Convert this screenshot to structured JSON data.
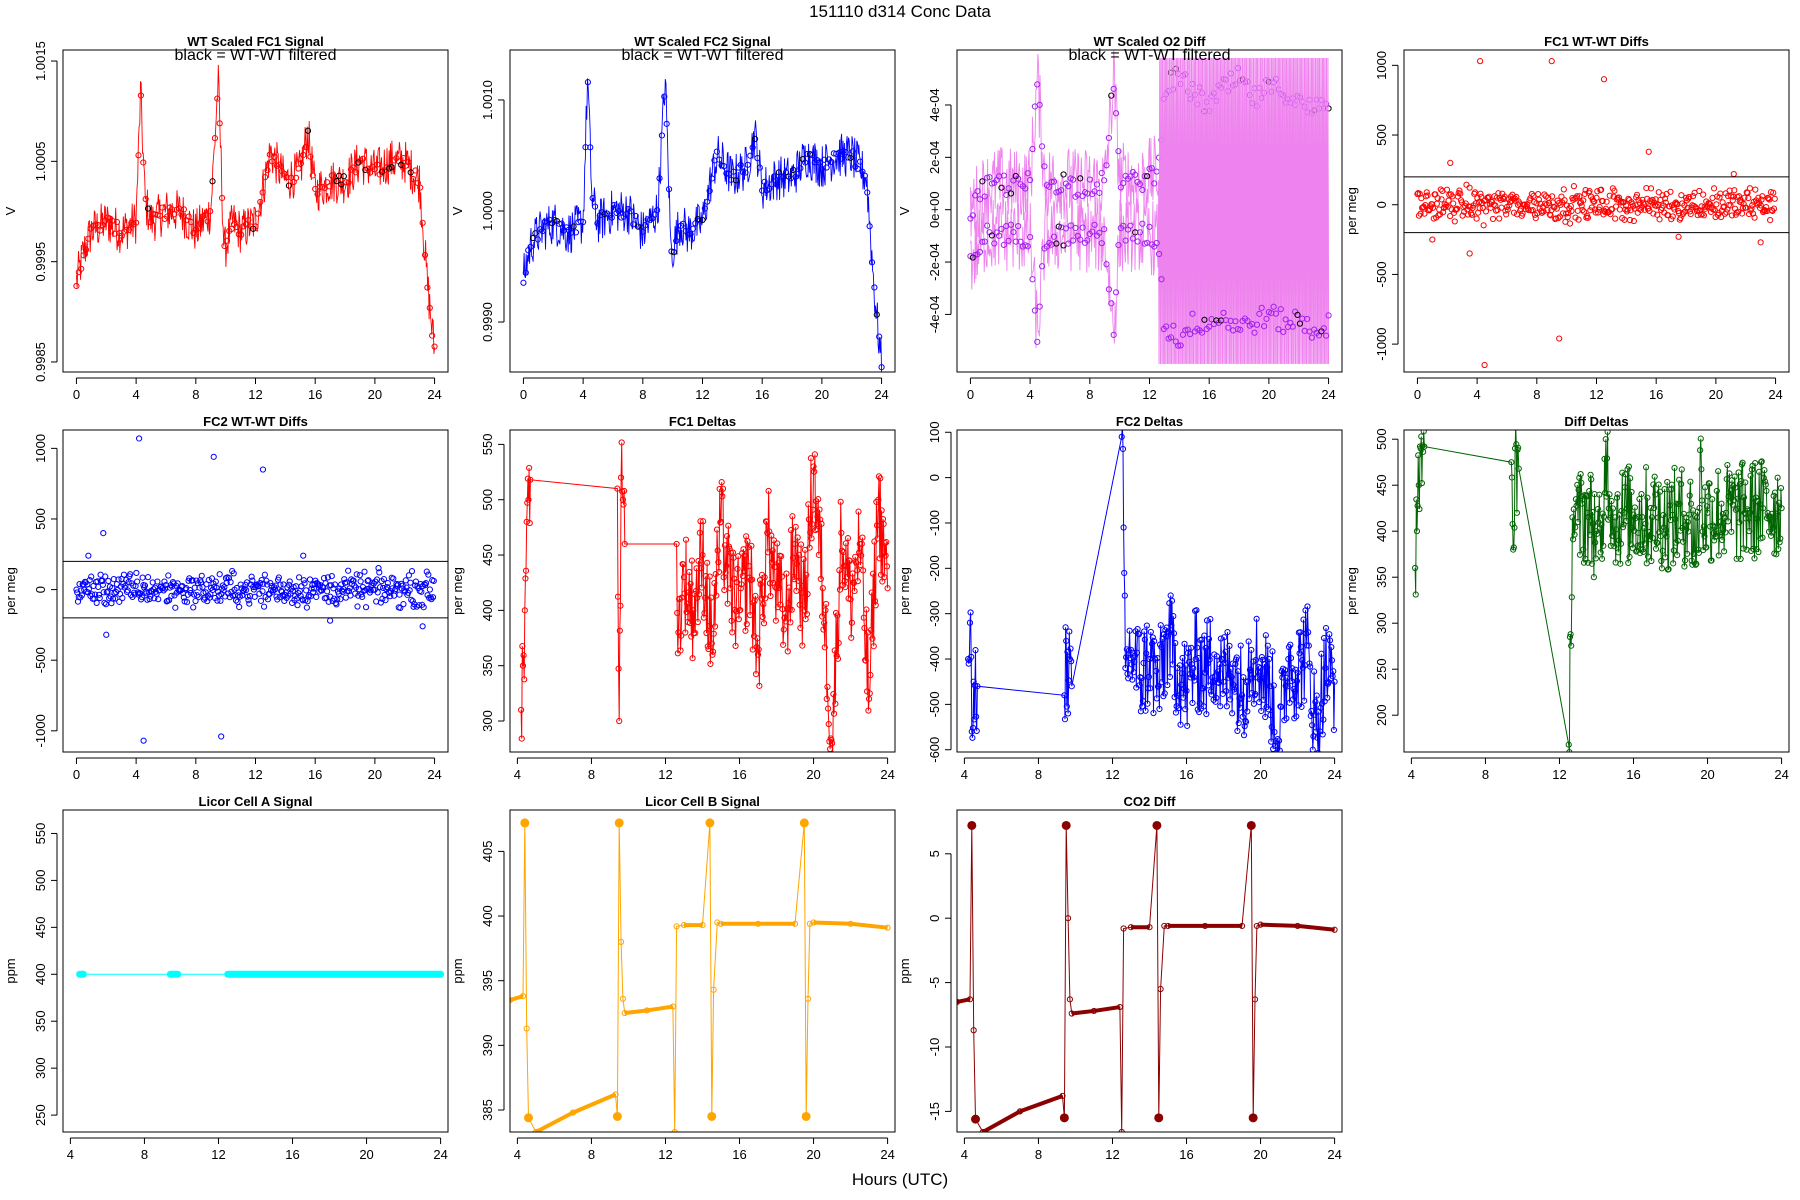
{
  "page": {
    "title": "151110    d314    Conc Data",
    "xlabel": "Hours (UTC)"
  },
  "chart_data": [
    {
      "type": "line",
      "title": "WT Scaled FC1 Signal",
      "annotation": "black = WT-WT filtered",
      "ylabel": "V",
      "color": "#ff0000",
      "xticks": [
        0,
        4,
        8,
        12,
        16,
        20,
        24
      ],
      "xlim": [
        -0.9,
        24.9
      ],
      "ylim": [
        0.9984,
        1.00161
      ],
      "yticks": [
        0.9985,
        0.9995,
        1.0005,
        1.0015
      ],
      "ytick_labels": [
        "0.9985",
        "0.9995",
        "1.0005",
        "1.0015"
      ],
      "overlay_color": "#000000",
      "series": [
        {
          "x": [
            0,
            0.5,
            1,
            2,
            3,
            4,
            4.3,
            4.6,
            5,
            6,
            7,
            8,
            9,
            9.5,
            9.9,
            10.5,
            11,
            12,
            12.6,
            13,
            14,
            15,
            15.5,
            16,
            17,
            18,
            19,
            20,
            21,
            22,
            23,
            23.5,
            24
          ],
          "values": [
            0.9993,
            0.9996,
            0.9998,
            0.9999,
            0.9998,
            0.9999,
            1.0012,
            1.0001,
            0.9999,
            1.0,
            1.0,
            0.9998,
            1.0,
            1.0013,
            0.9996,
            0.9999,
            0.9998,
            0.9999,
            1.0003,
            1.0006,
            1.0003,
            1.0004,
            1.0008,
            1.0002,
            1.0003,
            1.0003,
            1.0005,
            1.0004,
            1.0005,
            1.0005,
            1.0003,
            0.9993,
            0.9986
          ]
        }
      ]
    },
    {
      "type": "line",
      "title": "WT Scaled FC2 Signal",
      "annotation": "black = WT-WT filtered",
      "ylabel": "V",
      "color": "#0000ff",
      "xticks": [
        0,
        4,
        8,
        12,
        16,
        20,
        24
      ],
      "xlim": [
        -0.9,
        24.9
      ],
      "ylim": [
        0.99855,
        1.00145
      ],
      "yticks": [
        0.999,
        1.0,
        1.001
      ],
      "ytick_labels": [
        "0.9990",
        "1.0000",
        "1.0010"
      ],
      "overlay_color": "#000000",
      "series": [
        {
          "x": [
            0,
            0.5,
            1,
            2,
            3,
            4,
            4.3,
            4.6,
            5,
            6,
            7,
            8,
            9,
            9.5,
            9.9,
            10.5,
            11,
            12,
            12.6,
            13,
            14,
            15,
            15.5,
            16,
            17,
            18,
            19,
            20,
            21,
            22,
            23,
            23.5,
            24
          ],
          "values": [
            0.9994,
            0.9997,
            0.9998,
            0.9999,
            0.9998,
            0.9999,
            1.0012,
            1.0001,
            0.9999,
            1.0,
            1.0,
            0.9998,
            1.0,
            1.0012,
            0.9996,
            0.9999,
            0.9998,
            0.9999,
            1.0003,
            1.0005,
            1.0003,
            1.0004,
            1.0007,
            1.0002,
            1.0003,
            1.0003,
            1.0005,
            1.0004,
            1.0005,
            1.0005,
            1.0003,
            0.9993,
            0.9986
          ]
        }
      ]
    },
    {
      "type": "line",
      "title": "WT Scaled O2 Diff",
      "annotation": "black = WT-WT filtered",
      "ylabel": "V",
      "color": "#ee82ee",
      "point_color": "#a020f0",
      "xticks": [
        0,
        4,
        8,
        12,
        16,
        20,
        24
      ],
      "xlim": [
        -0.9,
        24.9
      ],
      "ylim": [
        -0.00062,
        0.00061
      ],
      "yticks": [
        -0.0004,
        -0.0002,
        0,
        0.0002,
        0.0004
      ],
      "ytick_labels": [
        "-4e-04",
        "-2e-04",
        "0e+00",
        "2e-04",
        "4e-04"
      ],
      "overlay_color": "#000000",
      "series": [
        {
          "name": "upper",
          "x": [
            0,
            1,
            2,
            3,
            4,
            4.5,
            5,
            6,
            7,
            8,
            9,
            9.6,
            10,
            11,
            12,
            12.6,
            13,
            14,
            15,
            16,
            17,
            18,
            19,
            20,
            21,
            22,
            23,
            24
          ],
          "values": [
            0.0,
            8e-05,
            0.0001,
            9e-05,
            0.0001,
            0.0005,
            0.0001,
            0.00011,
            9e-05,
            0.0001,
            0.0001,
            0.0005,
            0.00012,
            0.0001,
            0.00013,
            0.00014,
            0.00048,
            0.0005,
            0.00044,
            0.0004,
            0.00046,
            0.0005,
            0.00042,
            0.00046,
            0.00046,
            0.0004,
            0.00038,
            0.00042
          ]
        },
        {
          "name": "lower",
          "x": [
            0,
            1,
            2,
            3,
            4,
            4.5,
            5,
            6,
            7,
            8,
            9,
            9.6,
            10,
            11,
            12,
            12.6,
            13,
            14,
            15,
            16,
            17,
            18,
            19,
            20,
            21,
            22,
            23,
            24
          ],
          "values": [
            -0.0002,
            -0.0001,
            -9e-05,
            -0.0001,
            -0.0001,
            -0.00048,
            -0.0001,
            -0.0001,
            -9e-05,
            -0.0001,
            -0.0001,
            -0.00046,
            -0.0001,
            -9e-05,
            -0.0001,
            -0.00012,
            -0.00045,
            -0.00049,
            -0.00043,
            -0.00043,
            -0.00041,
            -0.00045,
            -0.00043,
            -0.0004,
            -0.00043,
            -0.00042,
            -0.00046,
            -0.00044
          ]
        }
      ]
    },
    {
      "type": "scatter",
      "title": "FC1 WT-WT Diffs",
      "ylabel": "per meg",
      "color": "#ff0000",
      "xticks": [
        0,
        4,
        8,
        12,
        16,
        20,
        24
      ],
      "xlim": [
        -0.9,
        24.9
      ],
      "ylim": [
        -1200,
        1110
      ],
      "yticks": [
        -1000,
        -500,
        0,
        500,
        1000
      ],
      "ytick_labels": [
        "-1000",
        "-500",
        "0",
        "500",
        "1000"
      ],
      "hlines": [
        200,
        -200
      ],
      "outliers": {
        "x": [
          4.2,
          9.0,
          12.5,
          2.2,
          15.5,
          21.2,
          4.5,
          9.5,
          3.5,
          1.0,
          23.0,
          17.5
        ],
        "values": [
          1030,
          1030,
          900,
          300,
          380,
          220,
          -1150,
          -960,
          -350,
          -250,
          -270,
          -230
        ]
      }
    },
    {
      "type": "scatter",
      "title": "FC2 WT-WT Diffs",
      "ylabel": "per meg",
      "color": "#0000ff",
      "xticks": [
        0,
        4,
        8,
        12,
        16,
        20,
        24
      ],
      "xlim": [
        -0.9,
        24.9
      ],
      "ylim": [
        -1150,
        1130
      ],
      "yticks": [
        -1000,
        -500,
        0,
        500,
        1000
      ],
      "ytick_labels": [
        "-1000",
        "-500",
        "0",
        "500",
        "1000"
      ],
      "hlines": [
        200,
        -200
      ],
      "outliers": {
        "x": [
          4.2,
          9.2,
          12.5,
          1.8,
          0.8,
          15.2,
          4.5,
          9.7,
          2.0,
          23.2,
          17.0
        ],
        "values": [
          1070,
          940,
          850,
          400,
          240,
          240,
          -1070,
          -1040,
          -320,
          -260,
          -220
        ]
      }
    },
    {
      "type": "line",
      "title": "FC1 Deltas",
      "ylabel": "per meg",
      "color": "#ff0000",
      "xticks": [
        4,
        8,
        12,
        16,
        20,
        24
      ],
      "xlim": [
        3.6,
        24.4
      ],
      "ylim": [
        272,
        563
      ],
      "yticks": [
        300,
        350,
        400,
        450,
        500,
        550
      ],
      "ytick_labels": [
        "300",
        "350",
        "400",
        "450",
        "500",
        "550"
      ],
      "series": [
        {
          "x": [
            4.2,
            4.3,
            4.4,
            4.5,
            4.6,
            4.7,
            9.4,
            9.5,
            9.6,
            9.7,
            9.8,
            12.6,
            12.7,
            13.0,
            13.5,
            14.0,
            14.5,
            15.0,
            15.5,
            16.0,
            16.5,
            17.0,
            17.5,
            18.0,
            18.5,
            19.0,
            19.5,
            20.0,
            20.5,
            21.0,
            21.5,
            22.0,
            22.5,
            23.0,
            23.5,
            24.0
          ],
          "values": [
            310,
            350,
            400,
            480,
            500,
            518,
            510,
            300,
            520,
            500,
            460,
            460,
            380,
            430,
            400,
            450,
            370,
            480,
            420,
            400,
            440,
            360,
            470,
            420,
            390,
            460,
            400,
            530,
            420,
            280,
            470,
            410,
            460,
            320,
            500,
            420
          ]
        }
      ]
    },
    {
      "type": "line",
      "title": "FC2 Deltas",
      "ylabel": "per meg",
      "color": "#0000ff",
      "xticks": [
        4,
        8,
        12,
        16,
        20,
        24
      ],
      "xlim": [
        3.6,
        24.4
      ],
      "ylim": [
        -605,
        105
      ],
      "yticks": [
        -600,
        -500,
        -400,
        -300,
        -200,
        -100,
        0,
        100
      ],
      "ytick_labels": [
        "-600",
        "-500",
        "-400",
        "-300",
        "-200",
        "-100",
        "0",
        "100"
      ],
      "series": [
        {
          "x": [
            4.2,
            4.3,
            4.4,
            4.5,
            4.7,
            9.4,
            9.5,
            9.6,
            9.7,
            9.8,
            12.5,
            12.6,
            12.7,
            13.0,
            13.5,
            14.0,
            14.5,
            15.0,
            15.5,
            16.0,
            16.5,
            17.0,
            17.5,
            18.0,
            18.5,
            19.0,
            19.5,
            20.0,
            20.5,
            21.0,
            21.5,
            22.0,
            22.5,
            23.0,
            23.5,
            24.0
          ],
          "values": [
            -400,
            -320,
            -560,
            -450,
            -460,
            -480,
            -360,
            -520,
            -400,
            -460,
            90,
            -110,
            -420,
            -380,
            -440,
            -400,
            -460,
            -350,
            -420,
            -470,
            -400,
            -430,
            -390,
            -450,
            -410,
            -480,
            -380,
            -420,
            -460,
            -580,
            -400,
            -430,
            -370,
            -560,
            -420,
            -450
          ]
        }
      ]
    },
    {
      "type": "line",
      "title": "Diff Deltas",
      "ylabel": "per meg",
      "color": "#006400",
      "xticks": [
        4,
        8,
        12,
        16,
        20,
        24
      ],
      "xlim": [
        3.6,
        24.4
      ],
      "ylim": [
        160,
        510
      ],
      "yticks": [
        200,
        250,
        300,
        350,
        400,
        450,
        500
      ],
      "ytick_labels": [
        "200",
        "250",
        "300",
        "350",
        "400",
        "450",
        "500"
      ],
      "series": [
        {
          "x": [
            4.2,
            4.3,
            4.4,
            4.5,
            4.6,
            4.7,
            9.4,
            9.5,
            9.6,
            9.7,
            9.8,
            12.5,
            12.6,
            12.7,
            13.0,
            13.5,
            14.0,
            14.3,
            14.5,
            14.7,
            15.0,
            16.0,
            17.0,
            18.0,
            19.0,
            19.5,
            19.6,
            19.8,
            20.0,
            21.0,
            22.0,
            23.0,
            24.0
          ],
          "values": [
            360,
            400,
            450,
            490,
            493,
            492,
            475,
            380,
            490,
            420,
            468,
            168,
            288,
            415,
            410,
            420,
            400,
            370,
            500,
            440,
            415,
            418,
            415,
            412,
            418,
            380,
            488,
            405,
            420,
            420,
            420,
            425,
            425
          ]
        }
      ]
    },
    {
      "type": "scatter",
      "title": "Licor Cell A Signal",
      "ylabel": "ppm",
      "color": "#00ffff",
      "xticks": [
        4,
        8,
        12,
        16,
        20,
        24
      ],
      "xlim": [
        3.6,
        24.4
      ],
      "ylim": [
        232,
        575
      ],
      "yticks": [
        250,
        300,
        350,
        400,
        450,
        500,
        550
      ],
      "ytick_labels": [
        "250",
        "300",
        "350",
        "400",
        "450",
        "500",
        "550"
      ],
      "series": [
        {
          "x": [
            4.5,
            4.7,
            9.4,
            9.8,
            12.5,
            24.0
          ],
          "values": [
            400,
            400,
            400,
            400,
            400,
            400
          ]
        }
      ]
    },
    {
      "type": "line",
      "title": "Licor Cell B Signal",
      "ylabel": "ppm",
      "color": "#ffa500",
      "xticks": [
        4,
        8,
        12,
        16,
        20,
        24
      ],
      "xlim": [
        3.6,
        24.4
      ],
      "ylim": [
        383.3,
        408.2
      ],
      "yticks": [
        385,
        390,
        395,
        400,
        405
      ],
      "ytick_labels": [
        "385",
        "390",
        "395",
        "400",
        "405"
      ],
      "series": [
        {
          "x": [
            3.6,
            4.3,
            4.4,
            4.5,
            4.6,
            5.0,
            7.0,
            9.3,
            9.4,
            9.5,
            9.6,
            9.7,
            9.8,
            11.0,
            12.4,
            12.5,
            12.6,
            13.0,
            14.0,
            14.4,
            14.5,
            14.6,
            14.8,
            15.0,
            17.0,
            19.0,
            19.5,
            19.6,
            19.7,
            19.8,
            20.0,
            22.0,
            24.0
          ],
          "values": [
            393.5,
            393.8,
            407.2,
            391.3,
            384.4,
            383.3,
            384.8,
            386.2,
            384.5,
            407.2,
            398.0,
            393.6,
            392.5,
            392.7,
            393.0,
            383.3,
            399.2,
            399.3,
            399.3,
            407.2,
            384.5,
            394.3,
            399.5,
            399.4,
            399.4,
            399.4,
            407.2,
            384.5,
            393.6,
            399.4,
            399.5,
            399.4,
            399.1
          ]
        }
      ]
    },
    {
      "type": "line",
      "title": "CO2 Diff",
      "ylabel": "ppm",
      "color": "#8b0000",
      "xticks": [
        4,
        8,
        12,
        16,
        20,
        24
      ],
      "xlim": [
        3.6,
        24.4
      ],
      "ylim": [
        -16.6,
        8.4
      ],
      "yticks": [
        -15,
        -10,
        -5,
        0,
        5
      ],
      "ytick_labels": [
        "-15",
        "-10",
        "-5",
        "0",
        "5"
      ],
      "series": [
        {
          "x": [
            3.6,
            4.3,
            4.4,
            4.5,
            4.6,
            5.0,
            7.0,
            9.3,
            9.4,
            9.5,
            9.6,
            9.7,
            9.8,
            11.0,
            12.4,
            12.5,
            12.6,
            13.0,
            14.0,
            14.4,
            14.5,
            14.6,
            14.8,
            15.0,
            17.0,
            19.0,
            19.5,
            19.6,
            19.7,
            19.8,
            20.0,
            22.0,
            24.0
          ],
          "values": [
            -6.5,
            -6.3,
            7.2,
            -8.7,
            -15.6,
            -16.6,
            -15.0,
            -13.8,
            -15.5,
            7.2,
            0.0,
            -6.3,
            -7.4,
            -7.2,
            -6.9,
            -16.6,
            -0.8,
            -0.7,
            -0.7,
            7.2,
            -15.5,
            -5.5,
            -0.6,
            -0.6,
            -0.6,
            -0.6,
            7.2,
            -15.5,
            -6.3,
            -0.6,
            -0.5,
            -0.6,
            -0.9
          ]
        }
      ]
    }
  ]
}
